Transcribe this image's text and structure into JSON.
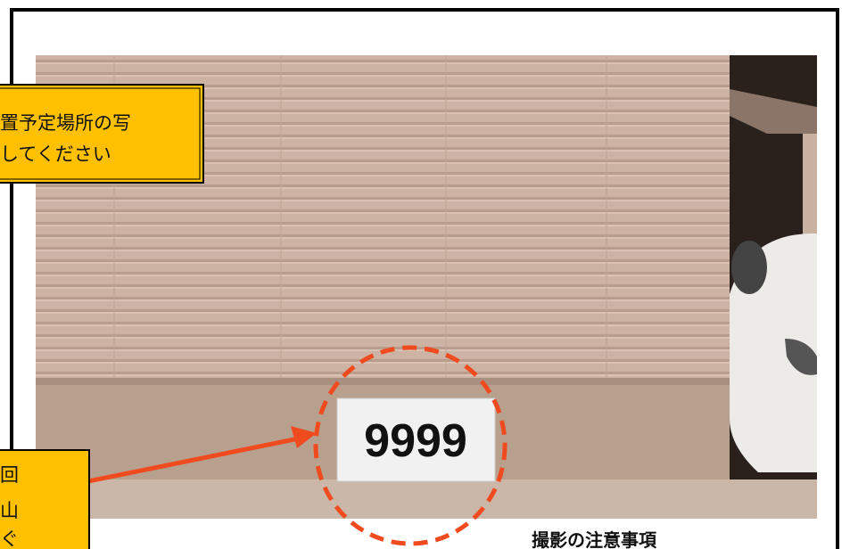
{
  "callout_top": {
    "lines": [
      "置予定場所の写",
      "してください"
    ]
  },
  "plate": {
    "number": "9999"
  },
  "callout_bottom": {
    "lines": [
      "回",
      "山",
      "ぐ"
    ]
  },
  "footer": {
    "heading": "撮影の注意事項"
  }
}
